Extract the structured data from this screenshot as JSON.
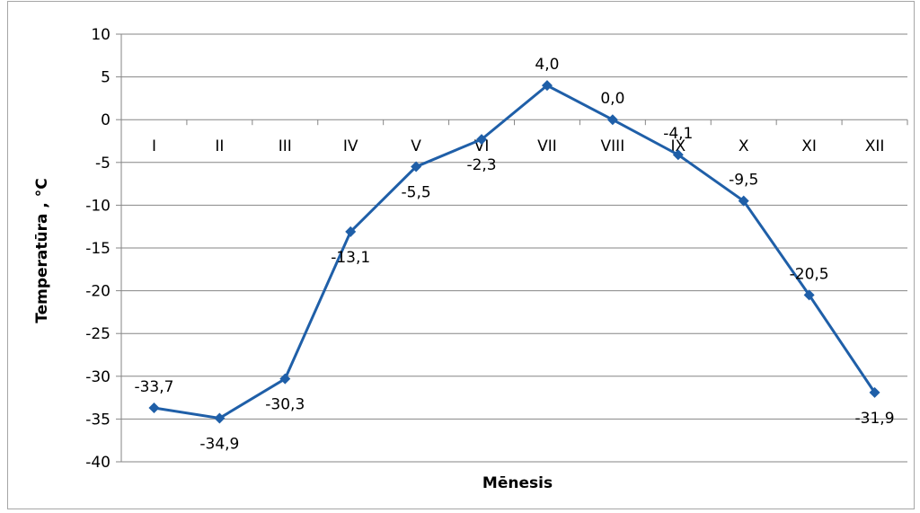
{
  "chart_data": {
    "type": "line",
    "title": "",
    "xlabel": "Mēnesis",
    "ylabel": "Temperatūra , °C",
    "categories": [
      "I",
      "II",
      "III",
      "IV",
      "V",
      "VI",
      "VII",
      "VIII",
      "IX",
      "X",
      "XI",
      "XII"
    ],
    "series": [
      {
        "values": [
          -33.7,
          -34.9,
          -30.3,
          -13.1,
          -5.5,
          -2.3,
          4.0,
          0.0,
          -4.1,
          -9.5,
          -20.5,
          -31.9
        ],
        "data_labels": [
          "-33,7",
          "-34,9",
          "-30,3",
          "-13,1",
          "-5,5",
          "-2,3",
          "4,0",
          "0,0",
          "-4,1",
          "-9,5",
          "-20,5",
          "-31,9"
        ]
      }
    ],
    "ylim": [
      -40,
      10
    ],
    "yticks": [
      10,
      5,
      0,
      -5,
      -10,
      -15,
      -20,
      -25,
      -30,
      -35,
      -40
    ],
    "grid": true,
    "legend": "none",
    "colors": {
      "line": "#1f5fa8",
      "marker": "#1f5fa8",
      "grid": "#868686"
    }
  }
}
